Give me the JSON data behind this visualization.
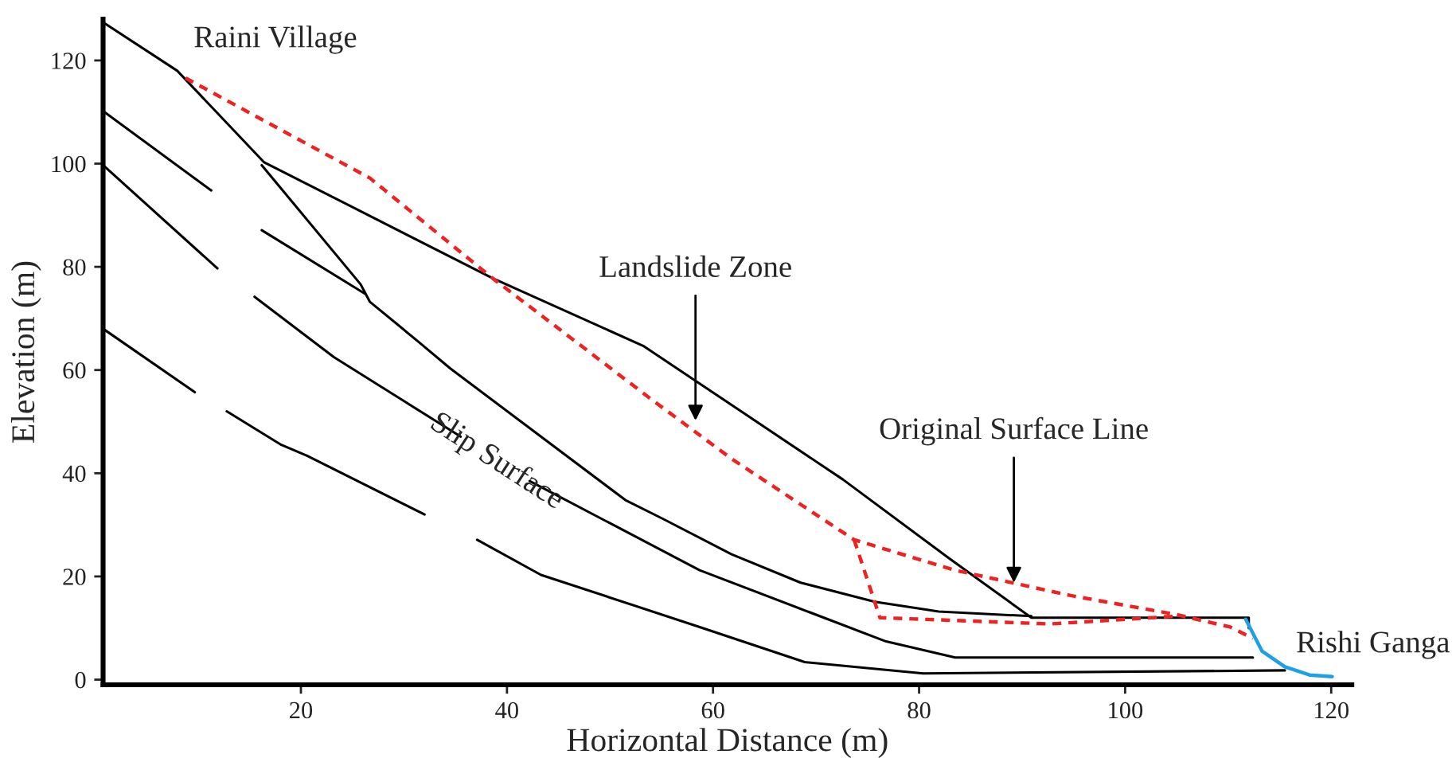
{
  "chart_data": {
    "type": "line",
    "xlabel": "Horizontal Distance (m)",
    "ylabel": "Elevation (m)",
    "xlim": [
      0.8,
      122
    ],
    "ylim": [
      -1,
      128
    ],
    "xticks": [
      20,
      40,
      60,
      80,
      100,
      120
    ],
    "yticks": [
      0,
      20,
      40,
      60,
      80,
      100,
      120
    ],
    "grid": false,
    "legend": false,
    "series": [
      {
        "color": "#000000",
        "x": [
          0.8,
          8,
          16.4,
          38.6,
          53.3,
          72.6,
          83,
          90.9,
          112,
          112
        ],
        "values": [
          127.4,
          118,
          100.3,
          77.8,
          64.6,
          38.8,
          23.4,
          12,
          12,
          10
        ]
      },
      {
        "color": "#000000",
        "x": [
          16.2,
          25.8,
          26.7,
          31.4,
          34.5,
          51.5,
          55.2,
          61.8,
          68.5,
          75.7,
          81.9,
          90.9
        ],
        "values": [
          99.7,
          76.6,
          73.2,
          65.5,
          60.3,
          34.8,
          31.1,
          24.3,
          18.8,
          15.1,
          13.2,
          12.3
        ]
      },
      {
        "color": "#ee2222",
        "line_style": "dashed",
        "x": [
          8.8,
          18.1,
          26.7,
          38.6,
          54.1,
          61.8,
          73.7,
          83.5,
          94.7,
          105,
          110.2,
          112.4
        ],
        "values": [
          116.6,
          106.5,
          97.2,
          77.8,
          54.2,
          42.8,
          27.1,
          21.2,
          16.3,
          12.6,
          10.2,
          8
        ]
      },
      {
        "color": "#ee2222",
        "line_style": "dashed",
        "x": [
          73.7,
          76.2,
          92.7,
          105
        ],
        "values": [
          27.1,
          12,
          10.8,
          12.3
        ]
      },
      {
        "color": "#000000",
        "x": [
          0.8,
          11.3
        ],
        "values": [
          110.2,
          94.8
        ]
      },
      {
        "color": "#000000",
        "x": [
          0.8,
          11.9,
          14,
          16.2,
          26.2
        ],
        "values": [
          99.7,
          79.7,
          null,
          87.1,
          74.8
        ]
      },
      {
        "color": "#000000",
        "x": [
          15.5,
          23.2,
          35.5,
          38.8,
          42.2,
          58.7,
          76.8,
          83.5,
          112.4
        ],
        "values": [
          74.2,
          62.5,
          47.1,
          null,
          38.5,
          21.2,
          7.4,
          4.3,
          4.3
        ]
      },
      {
        "color": "#000000",
        "x": [
          0.8,
          9.7,
          11,
          12.8,
          18.1,
          20.6,
          32,
          34,
          37.1,
          43.3,
          58.7,
          68.9,
          80.4,
          115.5
        ],
        "values": [
          68,
          55.7,
          null,
          52,
          45.5,
          43.4,
          32,
          null,
          27.1,
          20.3,
          10.2,
          3.4,
          1.2,
          1.8
        ]
      },
      {
        "color": "#1ea0e6",
        "x": [
          111.7,
          113.3,
          115.5,
          117.9,
          120.1
        ],
        "values": [
          11.7,
          5.5,
          2.5,
          0.9,
          0.6
        ]
      }
    ],
    "annotations": [
      "Raini Village",
      {
        "text": "Landslide Zone",
        "x": 58.3,
        "y": 50.2
      },
      "Slip Surface",
      {
        "text": "Original Surface Line",
        "x": 89.2,
        "y": 18.8
      },
      "Rishi Ganga"
    ]
  }
}
